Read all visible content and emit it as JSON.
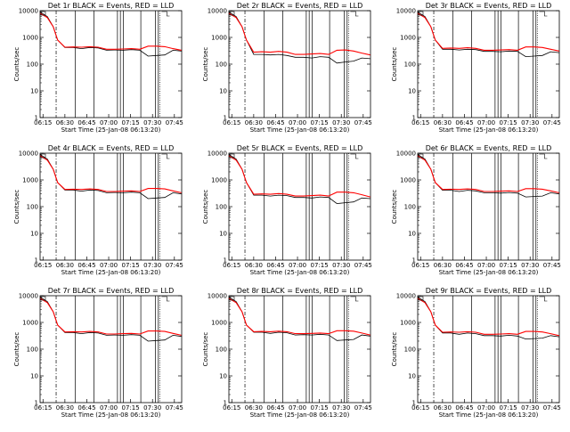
{
  "chart_data": [
    {
      "type": "line",
      "title": "Det 1r  BLACK = Events, RED = LLD",
      "xlabel": "Start Time (25-Jan-08 06:13:20)",
      "ylabel": "Counts/sec",
      "yscale": "log",
      "ylim": [
        1,
        10000
      ],
      "xlim": [
        "06:13",
        "07:50"
      ],
      "xticks": [
        "06:15",
        "06:30",
        "06:45",
        "07:00",
        "07:15",
        "07:30",
        "07:45"
      ],
      "yticks": [
        "1",
        "10",
        "100",
        "1000",
        "10000"
      ],
      "series": [
        {
          "color": "#000000",
          "values": [
            420,
            420,
            380,
            420,
            400,
            330,
            340,
            330,
            350,
            330,
            200,
            210,
            220,
            330,
            310
          ]
        },
        {
          "color": "#ff0000",
          "values": [
            430,
            440,
            430,
            450,
            430,
            360,
            360,
            370,
            380,
            360,
            470,
            470,
            450,
            380,
            330
          ]
        }
      ]
    },
    {
      "type": "line",
      "title": "Det 2r  BLACK = Events, RED = LLD",
      "xlabel": "Start Time (25-Jan-08 06:13:20)",
      "ylabel": "Counts/sec",
      "yscale": "log",
      "ylim": [
        1,
        10000
      ],
      "xlim": [
        "06:13",
        "07:50"
      ],
      "xticks": [
        "06:15",
        "06:30",
        "06:45",
        "07:00",
        "07:15",
        "07:30",
        "07:45"
      ],
      "yticks": [
        "1",
        "10",
        "100",
        "1000",
        "10000"
      ],
      "series": [
        {
          "color": "#000000",
          "values": [
            230,
            230,
            220,
            230,
            210,
            180,
            180,
            170,
            190,
            180,
            110,
            120,
            130,
            170,
            160
          ]
        },
        {
          "color": "#ff0000",
          "values": [
            280,
            290,
            280,
            300,
            280,
            230,
            230,
            240,
            250,
            230,
            330,
            340,
            310,
            260,
            220
          ]
        }
      ]
    },
    {
      "type": "line",
      "title": "Det 3r  BLACK = Events, RED = LLD",
      "xlabel": "Start Time (25-Jan-08 06:13:20)",
      "ylabel": "Counts/sec",
      "yscale": "log",
      "ylim": [
        1,
        10000
      ],
      "xlim": [
        "06:13",
        "07:50"
      ],
      "xticks": [
        "06:15",
        "06:30",
        "06:45",
        "07:00",
        "07:15",
        "07:30",
        "07:45"
      ],
      "yticks": [
        "1",
        "10",
        "100",
        "1000",
        "10000"
      ],
      "series": [
        {
          "color": "#000000",
          "values": [
            360,
            360,
            340,
            360,
            350,
            300,
            300,
            290,
            310,
            300,
            190,
            200,
            210,
            290,
            270
          ]
        },
        {
          "color": "#ff0000",
          "values": [
            390,
            400,
            390,
            410,
            390,
            330,
            330,
            340,
            350,
            330,
            440,
            440,
            420,
            360,
            310
          ]
        }
      ]
    },
    {
      "type": "line",
      "title": "Det 4r  BLACK = Events, RED = LLD",
      "xlabel": "Start Time (25-Jan-08 06:13:20)",
      "ylabel": "Counts/sec",
      "yscale": "log",
      "ylim": [
        1,
        10000
      ],
      "xlim": [
        "06:13",
        "07:50"
      ],
      "xticks": [
        "06:15",
        "06:30",
        "06:45",
        "07:00",
        "07:15",
        "07:30",
        "07:45"
      ],
      "yticks": [
        "1",
        "10",
        "100",
        "1000",
        "10000"
      ],
      "series": [
        {
          "color": "#000000",
          "values": [
            420,
            420,
            380,
            420,
            400,
            330,
            340,
            330,
            350,
            330,
            200,
            210,
            220,
            330,
            300
          ]
        },
        {
          "color": "#ff0000",
          "values": [
            440,
            450,
            440,
            460,
            440,
            370,
            370,
            380,
            390,
            370,
            480,
            480,
            460,
            390,
            330
          ]
        }
      ]
    },
    {
      "type": "line",
      "title": "Det 5r  BLACK = Events, RED = LLD",
      "xlabel": "Start Time (25-Jan-08 06:13:20)",
      "ylabel": "Counts/sec",
      "yscale": "log",
      "ylim": [
        1,
        10000
      ],
      "xlim": [
        "06:13",
        "07:50"
      ],
      "xticks": [
        "06:15",
        "06:30",
        "06:45",
        "07:00",
        "07:15",
        "07:30",
        "07:45"
      ],
      "yticks": [
        "1",
        "10",
        "100",
        "1000",
        "10000"
      ],
      "series": [
        {
          "color": "#000000",
          "values": [
            270,
            270,
            250,
            270,
            260,
            220,
            220,
            210,
            230,
            220,
            130,
            140,
            150,
            210,
            200
          ]
        },
        {
          "color": "#ff0000",
          "values": [
            290,
            300,
            290,
            310,
            290,
            250,
            250,
            260,
            270,
            250,
            350,
            350,
            330,
            280,
            230
          ]
        }
      ]
    },
    {
      "type": "line",
      "title": "Det 6r  BLACK = Events, RED = LLD",
      "xlabel": "Start Time (25-Jan-08 06:13:20)",
      "ylabel": "Counts/sec",
      "yscale": "log",
      "ylim": [
        1,
        10000
      ],
      "xlim": [
        "06:13",
        "07:50"
      ],
      "xticks": [
        "06:15",
        "06:30",
        "06:45",
        "07:00",
        "07:15",
        "07:30",
        "07:45"
      ],
      "yticks": [
        "1",
        "10",
        "100",
        "1000",
        "10000"
      ],
      "series": [
        {
          "color": "#000000",
          "values": [
            410,
            410,
            370,
            410,
            390,
            330,
            330,
            320,
            340,
            320,
            230,
            240,
            250,
            330,
            300
          ]
        },
        {
          "color": "#ff0000",
          "values": [
            440,
            450,
            440,
            460,
            440,
            370,
            370,
            380,
            390,
            370,
            470,
            470,
            450,
            390,
            330
          ]
        }
      ]
    },
    {
      "type": "line",
      "title": "Det 7r  BLACK = Events, RED = LLD",
      "xlabel": "Start Time (25-Jan-08 06:13:20)",
      "ylabel": "Counts/sec",
      "yscale": "log",
      "ylim": [
        1,
        10000
      ],
      "xlim": [
        "06:13",
        "07:50"
      ],
      "xticks": [
        "06:15",
        "06:30",
        "06:45",
        "07:00",
        "07:15",
        "07:30",
        "07:45"
      ],
      "yticks": [
        "1",
        "10",
        "100",
        "1000",
        "10000"
      ],
      "series": [
        {
          "color": "#000000",
          "values": [
            420,
            420,
            380,
            420,
            400,
            330,
            340,
            330,
            350,
            330,
            200,
            210,
            220,
            330,
            300
          ]
        },
        {
          "color": "#ff0000",
          "values": [
            440,
            450,
            440,
            460,
            440,
            370,
            370,
            380,
            390,
            370,
            480,
            480,
            460,
            390,
            330
          ]
        }
      ]
    },
    {
      "type": "line",
      "title": "Det 8r  BLACK = Events, RED = LLD",
      "xlabel": "Start Time (25-Jan-08 06:13:20)",
      "ylabel": "Counts/sec",
      "yscale": "log",
      "ylim": [
        1,
        10000
      ],
      "xlim": [
        "06:13",
        "07:50"
      ],
      "xticks": [
        "06:15",
        "06:30",
        "06:45",
        "07:00",
        "07:15",
        "07:30",
        "07:45"
      ],
      "yticks": [
        "1",
        "10",
        "100",
        "1000",
        "10000"
      ],
      "series": [
        {
          "color": "#000000",
          "values": [
            430,
            430,
            390,
            430,
            410,
            340,
            350,
            340,
            360,
            340,
            210,
            220,
            230,
            340,
            310
          ]
        },
        {
          "color": "#ff0000",
          "values": [
            450,
            460,
            450,
            470,
            450,
            380,
            380,
            390,
            400,
            380,
            490,
            490,
            470,
            400,
            340
          ]
        }
      ]
    },
    {
      "type": "line",
      "title": "Det 9r  BLACK = Events, RED = LLD",
      "xlabel": "Start Time (25-Jan-08 06:13:20)",
      "ylabel": "Counts/sec",
      "yscale": "log",
      "ylim": [
        1,
        10000
      ],
      "xlim": [
        "06:13",
        "07:50"
      ],
      "xticks": [
        "06:15",
        "06:30",
        "06:45",
        "07:00",
        "07:15",
        "07:30",
        "07:45"
      ],
      "yticks": [
        "1",
        "10",
        "100",
        "1000",
        "10000"
      ],
      "series": [
        {
          "color": "#000000",
          "values": [
            400,
            400,
            360,
            400,
            380,
            320,
            320,
            310,
            330,
            310,
            240,
            250,
            260,
            320,
            290
          ]
        },
        {
          "color": "#ff0000",
          "values": [
            430,
            440,
            430,
            450,
            430,
            360,
            360,
            370,
            380,
            360,
            460,
            460,
            440,
            380,
            320
          ]
        }
      ]
    }
  ]
}
